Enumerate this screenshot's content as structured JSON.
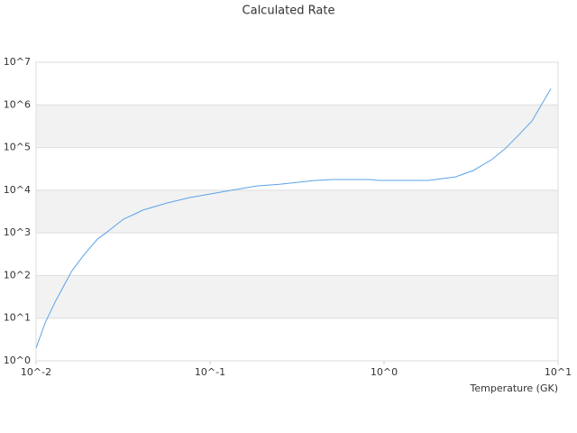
{
  "chart_data": {
    "type": "line",
    "title": "Calculated Rate",
    "x_label": "Temperature (GK)",
    "x_scale": "log",
    "y_scale": "log",
    "grid": true,
    "color": "#5ba3e8",
    "x": [
      0.01,
      0.01127,
      0.013,
      0.0161,
      0.0186,
      0.0225,
      0.026,
      0.0318,
      0.0372,
      0.0409,
      0.0564,
      0.076,
      0.122,
      0.186,
      0.251,
      0.404,
      0.513,
      0.826,
      0.931,
      1.8,
      2.57,
      3.26,
      4.14,
      4.95,
      5.92,
      7.08,
      9.1
    ],
    "values": [
      2.0,
      7.7,
      26,
      130,
      285,
      710,
      1100,
      2100,
      2800,
      3400,
      5000,
      6700,
      9400,
      12600,
      13800,
      17000,
      17800,
      17800,
      17000,
      17000,
      20500,
      29000,
      51700,
      93000,
      194000,
      420000,
      2400000
    ],
    "xlim": [
      0.01,
      10
    ],
    "xticks": [
      {
        "value": 0.01,
        "label": "10^-2"
      },
      {
        "value": 0.1,
        "label": "10^-1"
      },
      {
        "value": 1,
        "label": "10^0"
      },
      {
        "value": 10,
        "label": "10^1"
      }
    ],
    "ylim": [
      1,
      10000000
    ],
    "yticks": [
      {
        "value": 1,
        "label": "10^0"
      },
      {
        "value": 10,
        "label": "10^1"
      },
      {
        "value": 100,
        "label": "10^2"
      },
      {
        "value": 1000,
        "label": "10^3"
      },
      {
        "value": 10000,
        "label": "10^4"
      },
      {
        "value": 100000,
        "label": "10^5"
      },
      {
        "value": 1000000,
        "label": "10^6"
      },
      {
        "value": 10000000,
        "label": "10^7"
      }
    ]
  }
}
